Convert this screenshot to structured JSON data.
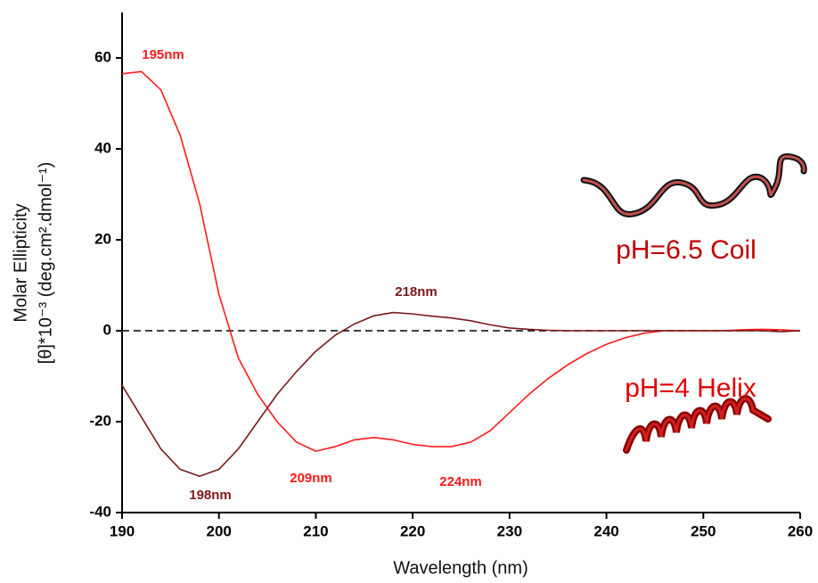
{
  "chart_data": {
    "type": "line",
    "x_label": "Wavelength (nm)",
    "y_label": [
      "Molar Ellipticity",
      "[θ]*10⁻³ (deg.cm².dmol⁻¹)"
    ],
    "x": [
      190,
      192,
      194,
      196,
      198,
      200,
      202,
      204,
      206,
      208,
      210,
      212,
      214,
      216,
      218,
      220,
      222,
      224,
      226,
      228,
      230,
      232,
      234,
      236,
      238,
      240,
      242,
      244,
      246,
      248,
      250,
      252,
      254,
      256,
      258,
      260
    ],
    "series": [
      {
        "color": "#ff1a1a",
        "values": [
          56.5,
          57,
          53,
          43,
          28,
          8,
          -6,
          -14,
          -20,
          -24.5,
          -26.5,
          -25.5,
          -24,
          -23.5,
          -24,
          -25,
          -25.5,
          -25.5,
          -24.5,
          -22,
          -18,
          -14,
          -10.5,
          -7.5,
          -5,
          -3,
          -1.5,
          -0.5,
          0,
          0,
          0,
          0,
          0.2,
          0.3,
          0.2,
          0
        ]
      },
      {
        "color": "#7a1a1a",
        "values": [
          -12,
          -19,
          -26,
          -30.5,
          -32,
          -30.5,
          -26,
          -20,
          -14,
          -9,
          -4.5,
          -1,
          1.5,
          3.3,
          4,
          3.7,
          3.2,
          2.8,
          2.2,
          1.3,
          0.6,
          0.3,
          0.1,
          0,
          0,
          0,
          0,
          0,
          0,
          0,
          0,
          0,
          0,
          0,
          -0.2,
          0
        ]
      }
    ],
    "reference_line": 0,
    "xlim": [
      190,
      260
    ],
    "xticks": [
      190,
      200,
      210,
      220,
      230,
      240,
      250,
      260
    ],
    "ylim": [
      -40,
      70
    ],
    "yticks": [
      -40,
      -20,
      0,
      20,
      40,
      60
    ],
    "annotations": [
      {
        "text": "195nm",
        "color": "#ff1a1a"
      },
      {
        "text": "218nm",
        "color": "#7a1a1a"
      },
      {
        "text": "198nm",
        "color": "#7a1a1a"
      },
      {
        "text": "209nm",
        "color": "#ff1a1a"
      },
      {
        "text": "224nm",
        "color": "#ff1a1a"
      },
      {
        "text": "pH=6.5 Coil",
        "color": "#c00000"
      },
      {
        "text": "pH=4 Helix",
        "color": "#e00000"
      }
    ]
  }
}
